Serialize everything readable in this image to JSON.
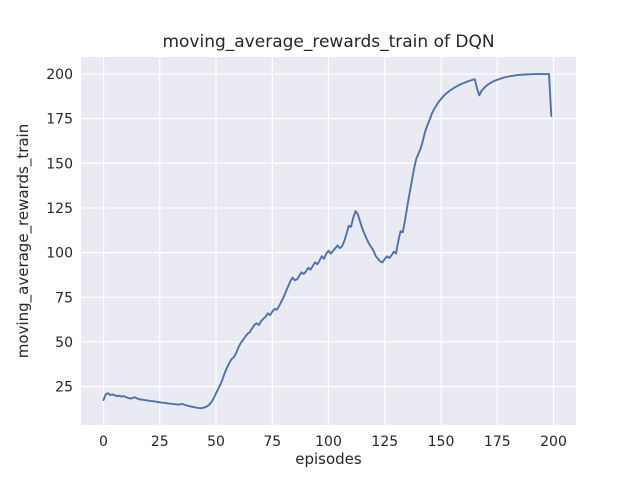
{
  "figure": {
    "title": "moving_average_rewards_train of DQN",
    "xlabel": "episodes",
    "ylabel": "moving_average_rewards_train"
  },
  "chart_data": {
    "type": "line",
    "title": "moving_average_rewards_train of DQN",
    "xlabel": "episodes",
    "ylabel": "moving_average_rewards_train",
    "x_ticks": [
      0,
      25,
      50,
      75,
      100,
      125,
      150,
      175,
      200
    ],
    "y_ticks": [
      25,
      50,
      75,
      100,
      125,
      150,
      175,
      200
    ],
    "xlim": [
      -10,
      210
    ],
    "ylim": [
      3.5,
      209.5
    ],
    "grid": true,
    "legend_position": "none",
    "style": {
      "line_color": "#4c72b0",
      "plot_bg": "#eaeaf2",
      "grid_color": "#ffffff",
      "text_color": "#262626",
      "figure_bg": "#ffffff"
    },
    "series": [
      {
        "name": "moving_average_rewards_train",
        "x_start": 0,
        "x_step": 1,
        "values": [
          17.5,
          20.8,
          21.3,
          20.3,
          20.6,
          20.1,
          19.6,
          19.9,
          19.4,
          19.7,
          19.1,
          18.6,
          18.3,
          18.7,
          19.0,
          18.3,
          17.9,
          17.7,
          17.5,
          17.3,
          17.1,
          16.9,
          16.8,
          16.6,
          16.4,
          16.2,
          16.0,
          15.9,
          15.7,
          15.5,
          15.4,
          15.2,
          15.1,
          14.9,
          15.1,
          15.3,
          14.8,
          14.4,
          14.1,
          13.8,
          13.5,
          13.3,
          13.1,
          12.9,
          13.0,
          13.4,
          13.9,
          14.9,
          16.4,
          18.6,
          21.2,
          23.8,
          26.3,
          29.5,
          33.0,
          36.0,
          38.5,
          40.5,
          41.5,
          44.0,
          47.0,
          49.5,
          51.0,
          53.0,
          54.5,
          55.5,
          57.5,
          59.5,
          60.5,
          59.5,
          61.5,
          63.0,
          64.0,
          66.0,
          65.0,
          67.0,
          68.5,
          68.0,
          70.0,
          72.5,
          75.0,
          78.0,
          81.0,
          84.0,
          86.0,
          84.5,
          85.0,
          87.0,
          89.0,
          88.0,
          89.5,
          91.5,
          90.5,
          92.5,
          94.5,
          93.5,
          95.5,
          98.0,
          96.5,
          99.5,
          101.0,
          99.5,
          101.0,
          102.5,
          104.0,
          102.5,
          103.5,
          106.5,
          110.5,
          115.0,
          114.5,
          119.5,
          123.3,
          121.5,
          117.5,
          113.5,
          110.5,
          107.5,
          105.0,
          103.0,
          101.0,
          98.0,
          96.5,
          95.0,
          94.5,
          96.5,
          98.0,
          97.0,
          98.5,
          100.5,
          99.5,
          106.5,
          112.0,
          111.5,
          118.0,
          126.0,
          133.0,
          140.0,
          147.0,
          152.5,
          155.5,
          158.5,
          163.0,
          168.0,
          171.5,
          174.5,
          178.0,
          180.5,
          182.5,
          184.5,
          186.0,
          187.5,
          188.8,
          189.8,
          190.8,
          191.6,
          192.4,
          193.1,
          193.8,
          194.4,
          194.9,
          195.4,
          195.9,
          196.3,
          196.7,
          197.1,
          192.0,
          188.0,
          190.6,
          192.0,
          193.2,
          194.2,
          195.0,
          195.7,
          196.3,
          196.8,
          197.2,
          197.6,
          198.0,
          198.3,
          198.6,
          198.8,
          199.0,
          199.2,
          199.4,
          199.5,
          199.6,
          199.7,
          199.7,
          199.8,
          199.8,
          199.9,
          199.9,
          199.9,
          199.9,
          199.9,
          199.9,
          199.9,
          199.9,
          176.5
        ]
      }
    ]
  }
}
